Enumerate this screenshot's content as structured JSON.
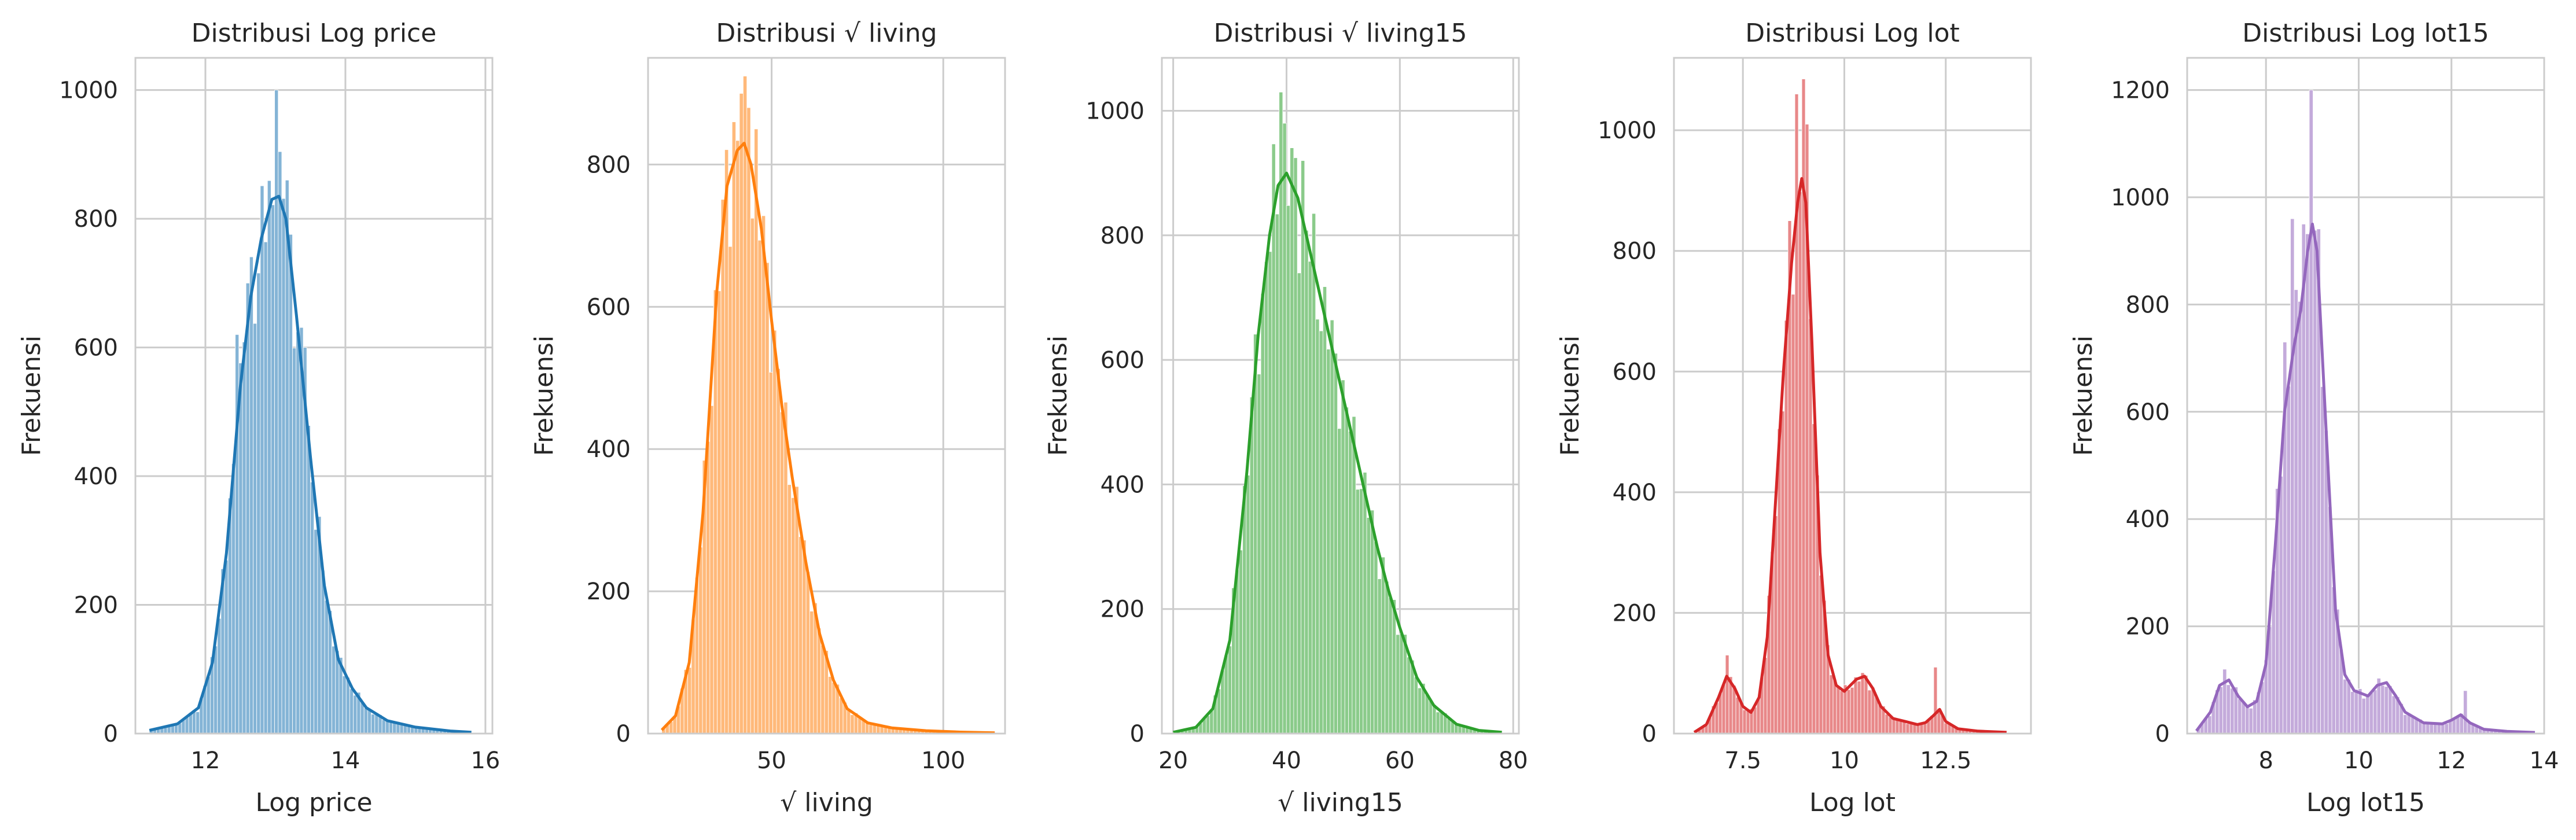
{
  "chart_data": [
    {
      "type": "histogram",
      "title": "Distribusi Log price",
      "xlabel": "Log price",
      "ylabel": "Frekuensi",
      "color": "#1f77b4",
      "xlim": [
        11.0,
        16.1
      ],
      "ylim": [
        0,
        1050
      ],
      "x_ticks": [
        12,
        14,
        16
      ],
      "y_ticks": [
        0,
        200,
        400,
        600,
        800,
        1000
      ],
      "grid": true,
      "kde": {
        "x": [
          11.2,
          11.6,
          11.9,
          12.1,
          12.3,
          12.5,
          12.65,
          12.8,
          12.95,
          13.05,
          13.15,
          13.3,
          13.5,
          13.7,
          13.9,
          14.1,
          14.3,
          14.6,
          15.0,
          15.5,
          15.8
        ],
        "y": [
          5,
          15,
          40,
          110,
          280,
          540,
          680,
          770,
          830,
          835,
          800,
          650,
          430,
          230,
          115,
          70,
          40,
          20,
          10,
          4,
          2
        ]
      },
      "spikes": [
        {
          "x": 13.0,
          "y": 1000
        },
        {
          "x": 12.82,
          "y": 845
        },
        {
          "x": 13.18,
          "y": 860
        },
        {
          "x": 12.6,
          "y": 700
        },
        {
          "x": 13.4,
          "y": 600
        },
        {
          "x": 12.45,
          "y": 620
        }
      ]
    },
    {
      "type": "histogram",
      "title": "Distribusi √ living",
      "xlabel": "√ living",
      "ylabel": "Frekuensi",
      "color": "#ff7f0e",
      "xlim": [
        14,
        118
      ],
      "ylim": [
        0,
        950
      ],
      "x_ticks": [
        50,
        100
      ],
      "y_ticks": [
        0,
        200,
        400,
        600,
        800
      ],
      "grid": true,
      "kde": {
        "x": [
          18,
          22,
          26,
          30,
          34,
          37,
          40,
          42,
          44,
          47,
          50,
          53,
          56,
          60,
          64,
          68,
          72,
          78,
          85,
          95,
          105,
          115
        ],
        "y": [
          5,
          25,
          100,
          310,
          620,
          770,
          820,
          830,
          800,
          710,
          580,
          460,
          360,
          240,
          140,
          75,
          35,
          15,
          8,
          4,
          2,
          1
        ]
      },
      "spikes": [
        {
          "x": 40.8,
          "y": 900
        },
        {
          "x": 43.0,
          "y": 880
        },
        {
          "x": 38.5,
          "y": 860
        },
        {
          "x": 45.0,
          "y": 850
        },
        {
          "x": 36.5,
          "y": 780
        }
      ]
    },
    {
      "type": "histogram",
      "title": "Distribusi √ living15",
      "xlabel": "√ living15",
      "ylabel": "Frekuensi",
      "color": "#2ca02c",
      "xlim": [
        18,
        81
      ],
      "ylim": [
        0,
        1085
      ],
      "x_ticks": [
        20,
        40,
        60,
        80
      ],
      "y_ticks": [
        0,
        200,
        400,
        600,
        800,
        1000
      ],
      "grid": true,
      "kde": {
        "x": [
          20,
          24,
          27,
          30,
          33,
          35,
          37,
          38.5,
          40,
          42,
          44,
          46,
          48,
          50,
          52,
          54,
          56,
          58,
          60,
          63,
          66,
          70,
          74,
          78
        ],
        "y": [
          2,
          10,
          40,
          150,
          420,
          640,
          800,
          880,
          900,
          860,
          780,
          700,
          620,
          540,
          460,
          380,
          300,
          230,
          170,
          90,
          45,
          15,
          5,
          2
        ]
      },
      "spikes": [
        {
          "x": 39.0,
          "y": 1030
        },
        {
          "x": 39.6,
          "y": 980
        },
        {
          "x": 41.5,
          "y": 920
        },
        {
          "x": 43.0,
          "y": 920
        },
        {
          "x": 37.5,
          "y": 860
        }
      ]
    },
    {
      "type": "histogram",
      "title": "Distribusi Log lot",
      "xlabel": "Log lot",
      "ylabel": "Frekuensi",
      "color": "#d62728",
      "xlim": [
        5.8,
        14.6
      ],
      "ylim": [
        0,
        1120
      ],
      "x_ticks": [
        7.5,
        10.0,
        12.5
      ],
      "y_ticks": [
        0,
        200,
        400,
        600,
        800,
        1000
      ],
      "grid": true,
      "kde": {
        "x": [
          6.3,
          6.6,
          6.9,
          7.1,
          7.3,
          7.5,
          7.7,
          7.9,
          8.1,
          8.3,
          8.5,
          8.7,
          8.85,
          8.95,
          9.05,
          9.2,
          9.4,
          9.6,
          9.8,
          10.0,
          10.3,
          10.5,
          10.7,
          10.9,
          11.2,
          11.5,
          11.8,
          12.0,
          12.2,
          12.35,
          12.5,
          12.8,
          13.3,
          14.0
        ],
        "y": [
          2,
          15,
          60,
          95,
          75,
          45,
          35,
          60,
          160,
          380,
          600,
          780,
          880,
          920,
          880,
          650,
          300,
          130,
          80,
          70,
          90,
          95,
          75,
          45,
          25,
          20,
          15,
          18,
          30,
          40,
          20,
          8,
          4,
          2
        ]
      },
      "spikes": [
        {
          "x": 8.96,
          "y": 1085
        },
        {
          "x": 8.85,
          "y": 1060
        },
        {
          "x": 9.1,
          "y": 1010
        },
        {
          "x": 8.65,
          "y": 850
        },
        {
          "x": 12.25,
          "y": 110
        },
        {
          "x": 7.1,
          "y": 130
        }
      ]
    },
    {
      "type": "histogram",
      "title": "Distribusi Log lot15",
      "xlabel": "Log lot15",
      "ylabel": "Frekuensi",
      "color": "#9467bd",
      "xlim": [
        6.3,
        14.0
      ],
      "ylim": [
        0,
        1260
      ],
      "x_ticks": [
        8,
        10,
        12,
        14
      ],
      "y_ticks": [
        0,
        200,
        400,
        600,
        800,
        1000,
        1200
      ],
      "grid": true,
      "kde": {
        "x": [
          6.5,
          6.8,
          7.0,
          7.2,
          7.4,
          7.6,
          7.8,
          8.0,
          8.2,
          8.4,
          8.6,
          8.75,
          8.9,
          9.0,
          9.1,
          9.3,
          9.5,
          9.7,
          9.9,
          10.2,
          10.4,
          10.6,
          10.8,
          11.0,
          11.4,
          11.8,
          12.0,
          12.2,
          12.4,
          12.7,
          13.2,
          13.8
        ],
        "y": [
          5,
          40,
          90,
          100,
          70,
          50,
          60,
          130,
          350,
          600,
          720,
          790,
          900,
          950,
          900,
          560,
          230,
          110,
          80,
          70,
          90,
          95,
          70,
          40,
          20,
          18,
          25,
          35,
          20,
          8,
          4,
          2
        ]
      },
      "spikes": [
        {
          "x": 8.95,
          "y": 1200
        },
        {
          "x": 8.6,
          "y": 960
        },
        {
          "x": 8.8,
          "y": 950
        },
        {
          "x": 8.4,
          "y": 730
        },
        {
          "x": 12.3,
          "y": 80
        },
        {
          "x": 7.1,
          "y": 120
        }
      ]
    }
  ]
}
